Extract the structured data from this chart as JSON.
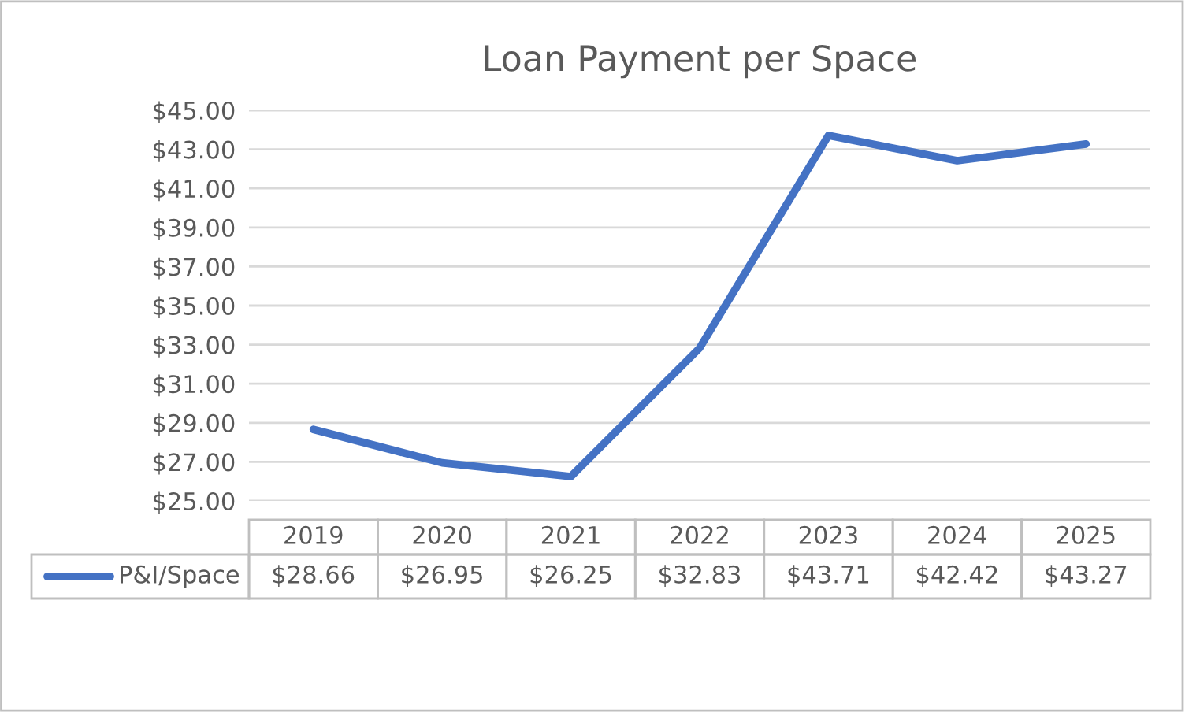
{
  "chart_data": {
    "type": "line",
    "title": "Loan Payment per Space",
    "categories": [
      "2019",
      "2020",
      "2021",
      "2022",
      "2023",
      "2024",
      "2025"
    ],
    "series": [
      {
        "name": "P&I/Space",
        "color": "#4472c4",
        "values": [
          28.66,
          26.95,
          26.25,
          32.83,
          43.71,
          42.42,
          43.27
        ],
        "value_labels": [
          "$28.66",
          "$26.95",
          "$26.25",
          "$32.83",
          "$43.71",
          "$42.42",
          "$43.27"
        ]
      }
    ],
    "ylim": [
      25,
      45
    ],
    "yticks": [
      {
        "value": 25,
        "label": "$25.00"
      },
      {
        "value": 27,
        "label": "$27.00"
      },
      {
        "value": 29,
        "label": "$29.00"
      },
      {
        "value": 31,
        "label": "$31.00"
      },
      {
        "value": 33,
        "label": "$33.00"
      },
      {
        "value": 35,
        "label": "$35.00"
      },
      {
        "value": 37,
        "label": "$37.00"
      },
      {
        "value": 39,
        "label": "$39.00"
      },
      {
        "value": 41,
        "label": "$41.00"
      },
      {
        "value": 43,
        "label": "$43.00"
      },
      {
        "value": 45,
        "label": "$45.00"
      }
    ],
    "grid": "y",
    "legend": "bottom",
    "marker": "none",
    "line_style": "solid"
  }
}
